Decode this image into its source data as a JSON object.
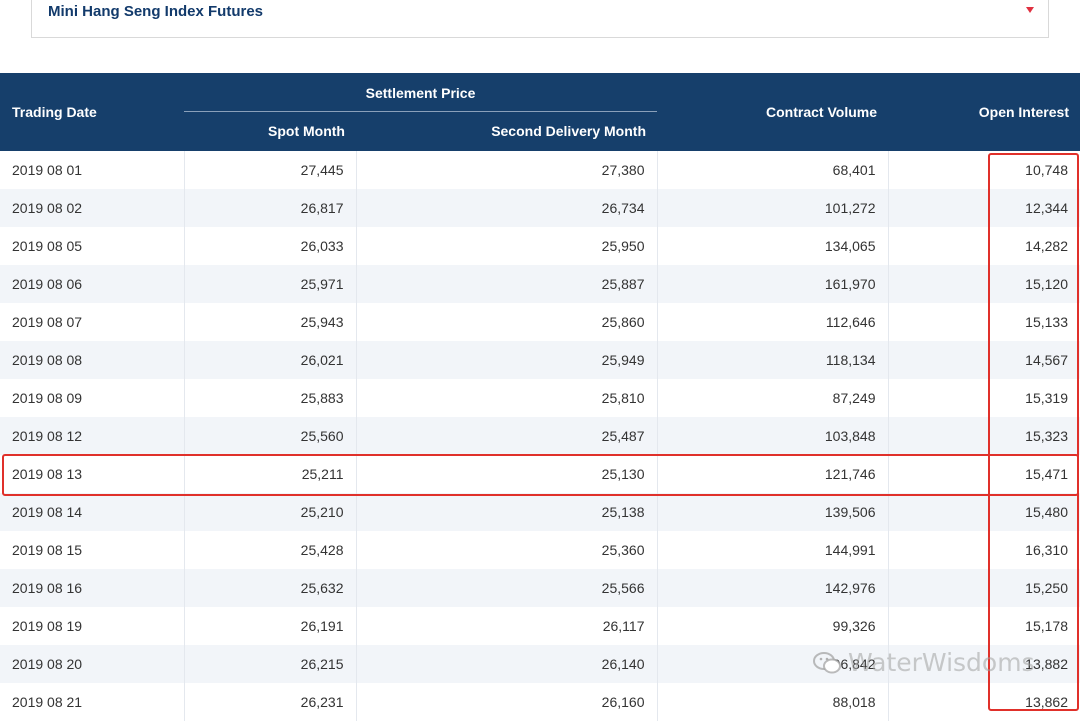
{
  "selector": {
    "value": "Mini Hang Seng Index Futures"
  },
  "table": {
    "headers": {
      "trading_date": "Trading Date",
      "settlement_price": "Settlement Price",
      "spot_month": "Spot Month",
      "second_delivery_month": "Second Delivery Month",
      "contract_volume": "Contract Volume",
      "open_interest": "Open Interest"
    },
    "rows": [
      [
        "2019 08 01",
        "27,445",
        "27,380",
        "68,401",
        "10,748"
      ],
      [
        "2019 08 02",
        "26,817",
        "26,734",
        "101,272",
        "12,344"
      ],
      [
        "2019 08 05",
        "26,033",
        "25,950",
        "134,065",
        "14,282"
      ],
      [
        "2019 08 06",
        "25,971",
        "25,887",
        "161,970",
        "15,120"
      ],
      [
        "2019 08 07",
        "25,943",
        "25,860",
        "112,646",
        "15,133"
      ],
      [
        "2019 08 08",
        "26,021",
        "25,949",
        "118,134",
        "14,567"
      ],
      [
        "2019 08 09",
        "25,883",
        "25,810",
        "87,249",
        "15,319"
      ],
      [
        "2019 08 12",
        "25,560",
        "25,487",
        "103,848",
        "15,323"
      ],
      [
        "2019 08 13",
        "25,211",
        "25,130",
        "121,746",
        "15,471"
      ],
      [
        "2019 08 14",
        "25,210",
        "25,138",
        "139,506",
        "15,480"
      ],
      [
        "2019 08 15",
        "25,428",
        "25,360",
        "144,991",
        "16,310"
      ],
      [
        "2019 08 16",
        "25,632",
        "25,566",
        "142,976",
        "15,250"
      ],
      [
        "2019 08 19",
        "26,191",
        "26,117",
        "99,326",
        "15,178"
      ],
      [
        "2019 08 20",
        "26,215",
        "26,140",
        "96,842",
        "13,882"
      ],
      [
        "2019 08 21",
        "26,231",
        "26,160",
        "88,018",
        "13,862"
      ]
    ]
  },
  "watermark": {
    "text": "WaterWisdoms",
    "icon": "wechat-icon"
  },
  "colors": {
    "header_bg": "#163f6b",
    "highlight": "#e0302a",
    "stripe": "#f2f5f9"
  }
}
